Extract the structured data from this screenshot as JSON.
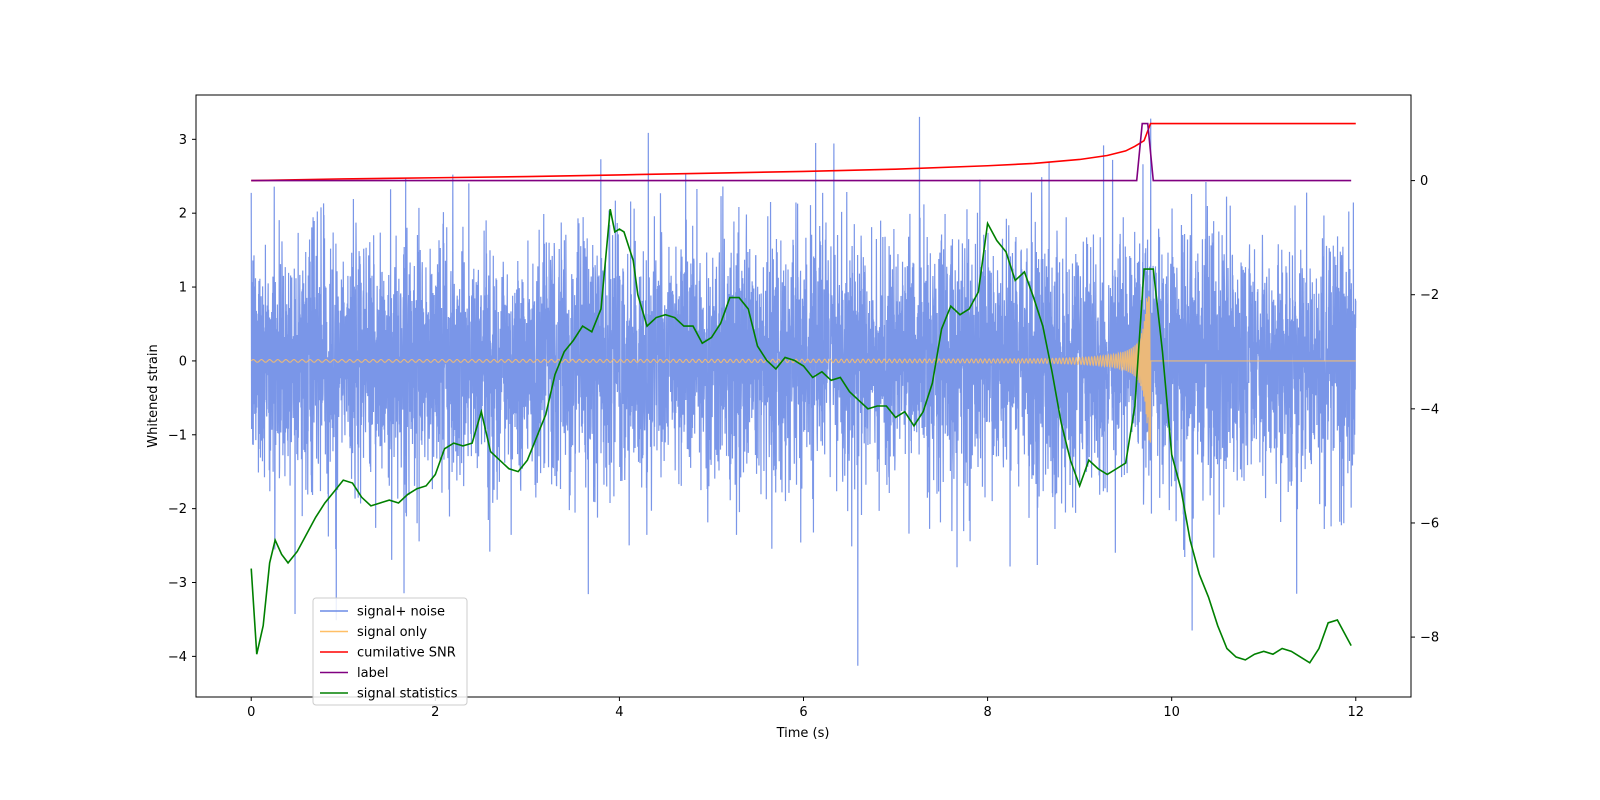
{
  "chart_data": {
    "type": "line",
    "title": "",
    "xlabel": "Time (s)",
    "ylabel_left": "Whitened strain",
    "ylabel_right": "",
    "xlim": [
      -0.6,
      12.6
    ],
    "ylim_left": [
      -4.55,
      3.6
    ],
    "ylim_right": [
      -9.05,
      1.5
    ],
    "x_ticks": [
      0,
      2,
      4,
      6,
      8,
      10,
      12
    ],
    "y_left_ticks": [
      -4,
      -3,
      -2,
      -1,
      0,
      1,
      2,
      3
    ],
    "y_right_ticks": [
      -8,
      -6,
      -4,
      -2,
      0
    ],
    "grid": false,
    "legend_position": "lower-left",
    "series": [
      {
        "name": "signal+ noise",
        "axis": "left",
        "color": "#6b8be6",
        "description": "dense whitened noise, roughly -2 to 2.5 with spikes",
        "x_range": [
          0,
          12
        ]
      },
      {
        "name": "signal only",
        "axis": "left",
        "color": "#ffbf66",
        "x_range": [
          0,
          12
        ],
        "chirp_peak_time": 9.77,
        "chirp_peak_amplitude": 1.1
      },
      {
        "name": "cumilative SNR",
        "axis": "right",
        "color": "#ff0000",
        "x": [
          0,
          1,
          2,
          3,
          4,
          5,
          6,
          7,
          8,
          8.5,
          9,
          9.3,
          9.5,
          9.6,
          9.7,
          9.77,
          12
        ],
        "y": [
          0,
          0.03,
          0.05,
          0.07,
          0.1,
          0.13,
          0.16,
          0.2,
          0.26,
          0.3,
          0.37,
          0.44,
          0.52,
          0.6,
          0.7,
          1.0,
          1.0
        ]
      },
      {
        "name": "label",
        "axis": "right",
        "color": "#800080",
        "x": [
          0,
          9.62,
          9.68,
          9.74,
          9.8,
          11.95
        ],
        "y": [
          0,
          0,
          1,
          1,
          0,
          0
        ]
      },
      {
        "name": "signal statistics",
        "axis": "right",
        "color": "#008000",
        "x": [
          0,
          0.06,
          0.13,
          0.2,
          0.26,
          0.33,
          0.4,
          0.5,
          0.6,
          0.7,
          0.8,
          0.9,
          1.0,
          1.1,
          1.2,
          1.3,
          1.4,
          1.5,
          1.6,
          1.7,
          1.8,
          1.9,
          2.0,
          2.1,
          2.2,
          2.3,
          2.4,
          2.5,
          2.6,
          2.7,
          2.8,
          2.9,
          3.0,
          3.1,
          3.2,
          3.3,
          3.4,
          3.5,
          3.6,
          3.7,
          3.8,
          3.9,
          3.95,
          4.0,
          4.05,
          4.1,
          4.15,
          4.2,
          4.3,
          4.4,
          4.5,
          4.6,
          4.7,
          4.8,
          4.9,
          5.0,
          5.1,
          5.2,
          5.3,
          5.4,
          5.5,
          5.6,
          5.7,
          5.8,
          5.9,
          6.0,
          6.1,
          6.2,
          6.3,
          6.4,
          6.5,
          6.6,
          6.7,
          6.8,
          6.9,
          7.0,
          7.1,
          7.2,
          7.3,
          7.4,
          7.5,
          7.6,
          7.7,
          7.8,
          7.9,
          8.0,
          8.1,
          8.2,
          8.3,
          8.4,
          8.5,
          8.6,
          8.7,
          8.8,
          8.9,
          9.0,
          9.1,
          9.2,
          9.3,
          9.4,
          9.5,
          9.6,
          9.7,
          9.8,
          9.9,
          10.0,
          10.1,
          10.2,
          10.3,
          10.4,
          10.5,
          10.6,
          10.7,
          10.8,
          10.9,
          11.0,
          11.1,
          11.2,
          11.3,
          11.4,
          11.5,
          11.6,
          11.7,
          11.8,
          11.9,
          11.95
        ],
        "y": [
          -6.8,
          -8.3,
          -7.8,
          -6.7,
          -6.3,
          -6.55,
          -6.7,
          -6.5,
          -6.2,
          -5.9,
          -5.65,
          -5.45,
          -5.25,
          -5.3,
          -5.55,
          -5.7,
          -5.65,
          -5.6,
          -5.65,
          -5.5,
          -5.4,
          -5.35,
          -5.15,
          -4.7,
          -4.6,
          -4.65,
          -4.6,
          -4.05,
          -4.75,
          -4.9,
          -5.05,
          -5.1,
          -4.9,
          -4.5,
          -4.1,
          -3.4,
          -3.0,
          -2.8,
          -2.55,
          -2.65,
          -2.25,
          -0.5,
          -0.9,
          -0.85,
          -0.9,
          -1.15,
          -1.4,
          -2.0,
          -2.55,
          -2.4,
          -2.35,
          -2.4,
          -2.55,
          -2.55,
          -2.85,
          -2.75,
          -2.5,
          -2.05,
          -2.05,
          -2.25,
          -2.9,
          -3.15,
          -3.3,
          -3.1,
          -3.15,
          -3.25,
          -3.45,
          -3.35,
          -3.5,
          -3.45,
          -3.7,
          -3.85,
          -4.0,
          -3.95,
          -3.95,
          -4.15,
          -4.05,
          -4.3,
          -4.05,
          -3.55,
          -2.6,
          -2.2,
          -2.35,
          -2.25,
          -1.95,
          -0.75,
          -1.05,
          -1.25,
          -1.75,
          -1.6,
          -2.05,
          -2.55,
          -3.35,
          -4.25,
          -4.9,
          -5.35,
          -4.9,
          -5.05,
          -5.15,
          -5.05,
          -4.95,
          -3.95,
          -1.55,
          -1.55,
          -3.0,
          -4.8,
          -5.4,
          -6.3,
          -6.9,
          -7.3,
          -7.8,
          -8.2,
          -8.35,
          -8.4,
          -8.3,
          -8.25,
          -8.3,
          -8.2,
          -8.25,
          -8.35,
          -8.45,
          -8.2,
          -7.75,
          -7.7,
          -8.0,
          -8.15
        ]
      }
    ]
  }
}
